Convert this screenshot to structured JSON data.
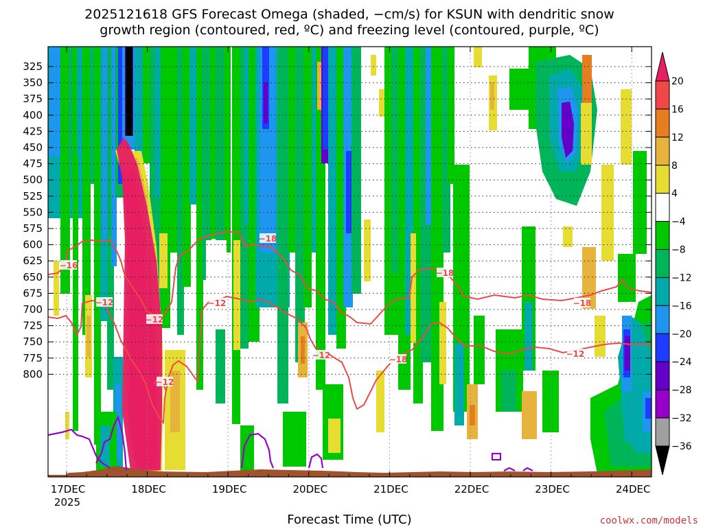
{
  "title_line1": "2025121618 GFS Forecast Omega (shaded, −cm/s) for KSUN with dendritic snow",
  "title_line2": "growth region (contoured, red, ºC) and freezing level (contoured, purple, ºC)",
  "credit": "coolwx.com/models",
  "colors": {
    "dgz_contour": "#f04848",
    "freezing_contour": "#9900cc",
    "terrain": "#a0522d",
    "credit": "#cc3333"
  },
  "chart_data": {
    "type": "heatmap",
    "xlabel": "Forecast Time (UTC)",
    "x_ticks": [
      "17DEC",
      "18DEC",
      "19DEC",
      "20DEC",
      "21DEC",
      "22DEC",
      "23DEC",
      "24DEC"
    ],
    "x_year_label": "2025",
    "y_ticks": [
      325,
      350,
      375,
      400,
      425,
      450,
      475,
      500,
      525,
      550,
      575,
      600,
      625,
      650,
      675,
      700,
      725,
      750,
      775,
      800
    ],
    "grid": true,
    "colorbar": {
      "levels": [
        20,
        16,
        12,
        8,
        4,
        -4,
        -8,
        -12,
        -16,
        -20,
        -24,
        -28,
        -32,
        -36
      ],
      "bin_colors": [
        "#e61e64",
        "#f04848",
        "#e67d1e",
        "#e6b43c",
        "#e6dc32",
        "#ffffff",
        "#00c800",
        "#00b45a",
        "#00aaaa",
        "#1e96f0",
        "#1e3cff",
        "#6400c8",
        "#9600c8",
        "#a0a0a0",
        "#000000"
      ]
    },
    "contour_labels": [
      {
        "value": "−16",
        "color": "red"
      },
      {
        "value": "−12",
        "color": "red"
      },
      {
        "value": "−18",
        "color": "red"
      },
      {
        "value": "−18",
        "color": "red"
      },
      {
        "value": "−12",
        "color": "red"
      },
      {
        "value": "−12",
        "color": "red"
      },
      {
        "value": "−12",
        "color": "red"
      },
      {
        "value": "−12",
        "color": "red"
      },
      {
        "value": "−18",
        "color": "red"
      },
      {
        "value": "−18",
        "color": "red"
      },
      {
        "value": "−12",
        "color": "red"
      }
    ]
  }
}
